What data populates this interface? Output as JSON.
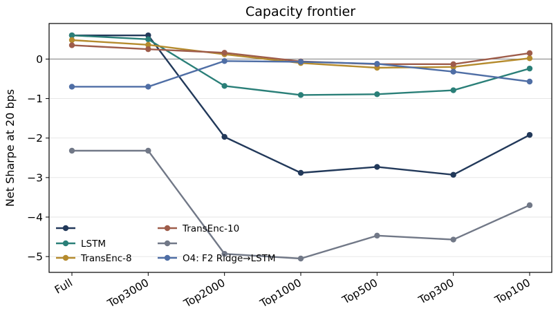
{
  "chart_data": {
    "type": "line",
    "title": "Capacity frontier",
    "xlabel": "",
    "ylabel": "Net Sharpe at 20 bps",
    "categories": [
      "Full",
      "Top3000",
      "Top2000",
      "Top1000",
      "Top500",
      "Top300",
      "Top100"
    ],
    "ylim": [
      -5.4,
      0.9
    ],
    "yticks": [
      -5,
      -4,
      -3,
      -2,
      -1,
      0
    ],
    "ytick_labels": [
      "−5",
      "−4",
      "−3",
      "−2",
      "−1",
      "0"
    ],
    "grid": "horizontal",
    "zero_line": true,
    "legend_position": "lower-left",
    "series": [
      {
        "name": "",
        "color": "#22395a",
        "values": [
          0.6,
          0.6,
          -1.97,
          -2.88,
          -2.73,
          -2.93,
          -1.92
        ]
      },
      {
        "name": "LSTM",
        "color": "#2a7f78",
        "values": [
          0.6,
          0.5,
          -0.68,
          -0.91,
          -0.89,
          -0.79,
          -0.24
        ]
      },
      {
        "name": "TransEnc-8",
        "color": "#b58b2e",
        "values": [
          0.48,
          0.36,
          0.12,
          -0.1,
          -0.22,
          -0.2,
          0.02
        ]
      },
      {
        "name": "TransEnc-10",
        "color": "#9e5c4a",
        "values": [
          0.35,
          0.25,
          0.16,
          -0.06,
          -0.13,
          -0.13,
          0.15
        ]
      },
      {
        "name": "",
        "color": "#717887",
        "values": [
          -2.32,
          -2.32,
          -4.93,
          -5.05,
          -4.47,
          -4.57,
          -3.7
        ]
      },
      {
        "name": "O4: F2 Ridge→LSTM",
        "color": "#4f6ea5",
        "values": [
          -0.7,
          -0.7,
          -0.05,
          -0.07,
          -0.12,
          -0.32,
          -0.57
        ]
      }
    ]
  }
}
